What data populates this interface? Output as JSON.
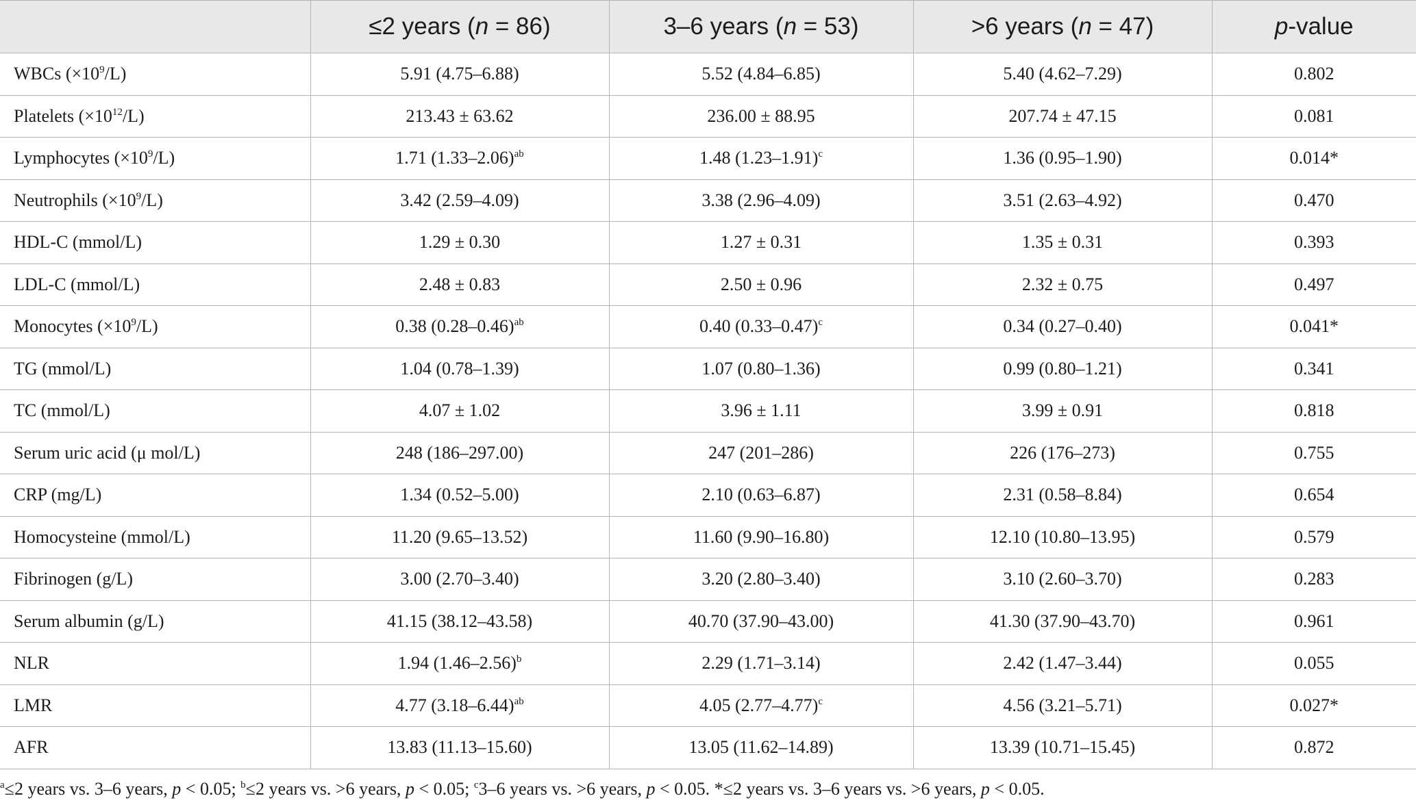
{
  "header": {
    "col1_prefix": "≤2 years (",
    "col1_n": "n",
    "col1_suffix": " = 86)",
    "col2_prefix": "3–6 years (",
    "col2_n": "n",
    "col2_suffix": " = 53)",
    "col3_prefix": ">6 years (",
    "col3_n": "n",
    "col3_suffix": " = 47)",
    "col4_p": "p",
    "col4_suffix": "-value"
  },
  "rows": [
    {
      "label": "WBCs (×10",
      "label_sup": "9",
      "label_tail": "/L)",
      "v1": "5.91 (4.75–6.88)",
      "v1_sup": "",
      "v2": "5.52 (4.84–6.85)",
      "v2_sup": "",
      "v3": "5.40 (4.62–7.29)",
      "p": "0.802"
    },
    {
      "label": "Platelets (×10",
      "label_sup": "12",
      "label_tail": "/L)",
      "v1": "213.43 ± 63.62",
      "v1_sup": "",
      "v2": "236.00 ± 88.95",
      "v2_sup": "",
      "v3": "207.74 ± 47.15",
      "p": "0.081"
    },
    {
      "label": "Lymphocytes (×10",
      "label_sup": "9",
      "label_tail": "/L)",
      "v1": "1.71 (1.33–2.06)",
      "v1_sup": "ab",
      "v2": "1.48 (1.23–1.91)",
      "v2_sup": "c",
      "v3": "1.36 (0.95–1.90)",
      "p": "0.014*"
    },
    {
      "label": "Neutrophils (×10",
      "label_sup": "9",
      "label_tail": "/L)",
      "v1": "3.42 (2.59–4.09)",
      "v1_sup": "",
      "v2": "3.38 (2.96–4.09)",
      "v2_sup": "",
      "v3": "3.51 (2.63–4.92)",
      "p": "0.470"
    },
    {
      "label": "HDL-C (mmol/L)",
      "label_sup": "",
      "label_tail": "",
      "v1": "1.29 ± 0.30",
      "v1_sup": "",
      "v2": "1.27 ± 0.31",
      "v2_sup": "",
      "v3": "1.35 ± 0.31",
      "p": "0.393"
    },
    {
      "label": "LDL-C (mmol/L)",
      "label_sup": "",
      "label_tail": "",
      "v1": "2.48 ± 0.83",
      "v1_sup": "",
      "v2": "2.50 ± 0.96",
      "v2_sup": "",
      "v3": "2.32 ± 0.75",
      "p": "0.497"
    },
    {
      "label": "Monocytes (×10",
      "label_sup": "9",
      "label_tail": "/L)",
      "v1": "0.38 (0.28–0.46)",
      "v1_sup": "ab",
      "v2": "0.40 (0.33–0.47)",
      "v2_sup": "c",
      "v3": "0.34 (0.27–0.40)",
      "p": "0.041*"
    },
    {
      "label": "TG (mmol/L)",
      "label_sup": "",
      "label_tail": "",
      "v1": "1.04 (0.78–1.39)",
      "v1_sup": "",
      "v2": "1.07 (0.80–1.36)",
      "v2_sup": "",
      "v3": "0.99 (0.80–1.21)",
      "p": "0.341"
    },
    {
      "label": "TC (mmol/L)",
      "label_sup": "",
      "label_tail": "",
      "v1": "4.07 ± 1.02",
      "v1_sup": "",
      "v2": "3.96 ± 1.11",
      "v2_sup": "",
      "v3": "3.99 ± 0.91",
      "p": "0.818"
    },
    {
      "label": "Serum uric acid (μ mol/L)",
      "label_sup": "",
      "label_tail": "",
      "v1": "248 (186–297.00)",
      "v1_sup": "",
      "v2": "247 (201–286)",
      "v2_sup": "",
      "v3": "226 (176–273)",
      "p": "0.755"
    },
    {
      "label": "CRP (mg/L)",
      "label_sup": "",
      "label_tail": "",
      "v1": "1.34 (0.52–5.00)",
      "v1_sup": "",
      "v2": "2.10 (0.63–6.87)",
      "v2_sup": "",
      "v3": "2.31 (0.58–8.84)",
      "p": "0.654"
    },
    {
      "label": "Homocysteine (mmol/L)",
      "label_sup": "",
      "label_tail": "",
      "v1": "11.20 (9.65–13.52)",
      "v1_sup": "",
      "v2": "11.60 (9.90–16.80)",
      "v2_sup": "",
      "v3": "12.10 (10.80–13.95)",
      "p": "0.579"
    },
    {
      "label": "Fibrinogen (g/L)",
      "label_sup": "",
      "label_tail": "",
      "v1": "3.00 (2.70–3.40)",
      "v1_sup": "",
      "v2": "3.20 (2.80–3.40)",
      "v2_sup": "",
      "v3": "3.10 (2.60–3.70)",
      "p": "0.283"
    },
    {
      "label": "Serum albumin (g/L)",
      "label_sup": "",
      "label_tail": "",
      "v1": "41.15 (38.12–43.58)",
      "v1_sup": "",
      "v2": "40.70 (37.90–43.00)",
      "v2_sup": "",
      "v3": "41.30 (37.90–43.70)",
      "p": "0.961"
    },
    {
      "label": "NLR",
      "label_sup": "",
      "label_tail": "",
      "v1": "1.94 (1.46–2.56)",
      "v1_sup": "b",
      "v2": "2.29 (1.71–3.14)",
      "v2_sup": "",
      "v3": "2.42 (1.47–3.44)",
      "p": "0.055"
    },
    {
      "label": "LMR",
      "label_sup": "",
      "label_tail": "",
      "v1": "4.77 (3.18–6.44)",
      "v1_sup": "ab",
      "v2": "4.05 (2.77–4.77)",
      "v2_sup": "c",
      "v3": "4.56 (3.21–5.71)",
      "p": "0.027*"
    },
    {
      "label": "AFR",
      "label_sup": "",
      "label_tail": "",
      "v1": "13.83 (11.13–15.60)",
      "v1_sup": "",
      "v2": "13.05 (11.62–14.89)",
      "v2_sup": "",
      "v3": "13.39 (10.71–15.45)",
      "p": "0.872"
    }
  ],
  "footnote": {
    "a_mark": "a",
    "a_text": "≤2 years vs. 3–6 years, ",
    "a_p": "p",
    "a_tail": " < 0.05; ",
    "b_mark": "b",
    "b_text": "≤2 years vs. >6 years, ",
    "b_p": "p",
    "b_tail": " < 0.05; ",
    "c_mark": "c",
    "c_text": "3–6 years vs. >6 years, ",
    "c_p": "p",
    "c_tail": " < 0.05. ",
    "star_text": "*≤2 years vs. 3–6 years vs. >6 years, ",
    "star_p": "p",
    "star_tail": " < 0.05."
  }
}
